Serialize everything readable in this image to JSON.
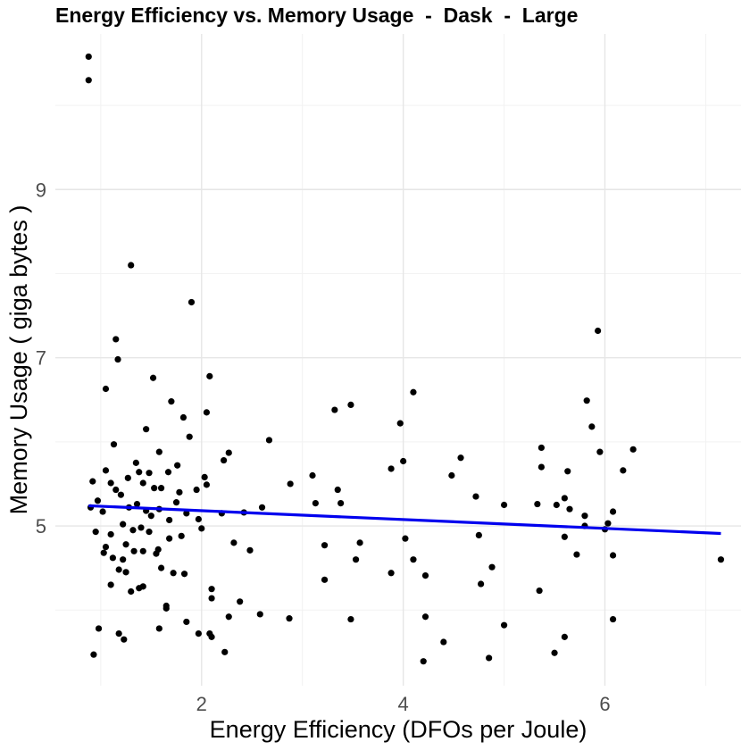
{
  "chart_data": {
    "type": "scatter",
    "title": "Energy Efficiency vs. Memory Usage  -  Dask  -  Large",
    "xlabel": "Energy Efficiency (DFOs per Joule)",
    "ylabel": "Memory Usage ( giga bytes )",
    "xlim": [
      0.55,
      7.35
    ],
    "ylim": [
      3.1,
      10.85
    ],
    "xticks": [
      2,
      4,
      6
    ],
    "yticks": [
      5,
      7,
      9
    ],
    "grid": true,
    "legend": "none",
    "point_color": "#000000",
    "line_color": "#0000ee",
    "trend_line": {
      "x": [
        0.88,
        7.15
      ],
      "y": [
        5.24,
        4.91
      ]
    },
    "points": [
      [
        0.88,
        10.58
      ],
      [
        0.88,
        10.3
      ],
      [
        1.3,
        8.1
      ],
      [
        1.9,
        7.66
      ],
      [
        5.93,
        7.32
      ],
      [
        1.15,
        7.22
      ],
      [
        1.17,
        6.98
      ],
      [
        1.52,
        6.76
      ],
      [
        2.08,
        6.78
      ],
      [
        1.05,
        6.63
      ],
      [
        1.7,
        6.48
      ],
      [
        1.45,
        6.15
      ],
      [
        1.82,
        6.29
      ],
      [
        2.05,
        6.35
      ],
      [
        3.32,
        6.38
      ],
      [
        3.48,
        6.44
      ],
      [
        4.1,
        6.59
      ],
      [
        3.97,
        6.22
      ],
      [
        5.82,
        6.49
      ],
      [
        5.87,
        6.18
      ],
      [
        1.13,
        5.97
      ],
      [
        1.88,
        6.06
      ],
      [
        2.27,
        5.87
      ],
      [
        2.67,
        6.02
      ],
      [
        5.37,
        5.93
      ],
      [
        5.95,
        5.88
      ],
      [
        6.28,
        5.91
      ],
      [
        3.88,
        5.68
      ],
      [
        4.0,
        5.77
      ],
      [
        4.57,
        5.81
      ],
      [
        5.37,
        5.7
      ],
      [
        5.63,
        5.65
      ],
      [
        6.18,
        5.66
      ],
      [
        3.1,
        5.6
      ],
      [
        4.48,
        5.6
      ],
      [
        1.05,
        5.66
      ],
      [
        1.35,
        5.75
      ],
      [
        1.76,
        5.72
      ],
      [
        1.58,
        5.88
      ],
      [
        2.22,
        5.78
      ],
      [
        1.38,
        5.64
      ],
      [
        1.48,
        5.63
      ],
      [
        1.67,
        5.64
      ],
      [
        2.03,
        5.58
      ],
      [
        1.27,
        5.57
      ],
      [
        0.92,
        5.53
      ],
      [
        1.1,
        5.51
      ],
      [
        1.42,
        5.51
      ],
      [
        1.53,
        5.45
      ],
      [
        1.6,
        5.45
      ],
      [
        1.78,
        5.4
      ],
      [
        1.95,
        5.43
      ],
      [
        2.05,
        5.49
      ],
      [
        0.97,
        5.3
      ],
      [
        1.02,
        5.17
      ],
      [
        1.15,
        5.43
      ],
      [
        1.2,
        5.37
      ],
      [
        1.28,
        5.22
      ],
      [
        1.36,
        5.26
      ],
      [
        1.45,
        5.18
      ],
      [
        1.5,
        5.12
      ],
      [
        1.58,
        5.2
      ],
      [
        1.68,
        5.07
      ],
      [
        1.75,
        5.28
      ],
      [
        1.85,
        5.15
      ],
      [
        1.97,
        5.08
      ],
      [
        2.2,
        5.15
      ],
      [
        2.42,
        5.16
      ],
      [
        2.6,
        5.22
      ],
      [
        2.88,
        5.5
      ],
      [
        3.13,
        5.27
      ],
      [
        3.35,
        5.43
      ],
      [
        3.38,
        5.27
      ],
      [
        4.72,
        5.35
      ],
      [
        5.0,
        5.25
      ],
      [
        5.33,
        5.26
      ],
      [
        5.52,
        5.25
      ],
      [
        5.6,
        5.33
      ],
      [
        5.65,
        5.2
      ],
      [
        5.8,
        5.12
      ],
      [
        6.08,
        5.17
      ],
      [
        0.9,
        5.22
      ],
      [
        0.95,
        4.93
      ],
      [
        1.05,
        4.75
      ],
      [
        1.1,
        4.9
      ],
      [
        1.22,
        5.02
      ],
      [
        1.32,
        4.95
      ],
      [
        1.4,
        4.98
      ],
      [
        1.48,
        4.93
      ],
      [
        1.57,
        4.72
      ],
      [
        1.68,
        4.85
      ],
      [
        1.8,
        4.88
      ],
      [
        2.0,
        4.97
      ],
      [
        2.32,
        4.8
      ],
      [
        2.48,
        4.71
      ],
      [
        3.22,
        4.77
      ],
      [
        3.57,
        4.8
      ],
      [
        3.53,
        4.6
      ],
      [
        4.02,
        4.85
      ],
      [
        4.75,
        4.89
      ],
      [
        5.6,
        4.87
      ],
      [
        5.8,
        5.0
      ],
      [
        6.0,
        4.96
      ],
      [
        6.03,
        5.03
      ],
      [
        6.08,
        4.65
      ],
      [
        1.03,
        4.68
      ],
      [
        1.12,
        4.62
      ],
      [
        1.18,
        4.48
      ],
      [
        1.22,
        4.6
      ],
      [
        1.25,
        4.78
      ],
      [
        1.33,
        4.7
      ],
      [
        1.42,
        4.7
      ],
      [
        1.55,
        4.67
      ],
      [
        1.6,
        4.5
      ],
      [
        1.72,
        4.44
      ],
      [
        1.83,
        4.43
      ],
      [
        3.22,
        4.36
      ],
      [
        3.88,
        4.44
      ],
      [
        4.1,
        4.6
      ],
      [
        4.22,
        4.41
      ],
      [
        4.77,
        4.31
      ],
      [
        4.88,
        4.51
      ],
      [
        5.35,
        4.23
      ],
      [
        5.72,
        4.66
      ],
      [
        1.1,
        4.3
      ],
      [
        1.25,
        4.45
      ],
      [
        1.3,
        4.22
      ],
      [
        1.38,
        4.26
      ],
      [
        1.42,
        4.28
      ],
      [
        2.1,
        4.25
      ],
      [
        2.1,
        4.14
      ],
      [
        1.65,
        4.05
      ],
      [
        1.65,
        4.02
      ],
      [
        2.38,
        4.1
      ],
      [
        1.85,
        3.86
      ],
      [
        2.27,
        3.92
      ],
      [
        2.58,
        3.95
      ],
      [
        2.87,
        3.9
      ],
      [
        3.48,
        3.89
      ],
      [
        4.22,
        3.92
      ],
      [
        5.0,
        3.82
      ],
      [
        6.08,
        3.89
      ],
      [
        1.58,
        3.78
      ],
      [
        0.98,
        3.78
      ],
      [
        1.18,
        3.72
      ],
      [
        1.23,
        3.65
      ],
      [
        1.97,
        3.72
      ],
      [
        2.08,
        3.72
      ],
      [
        2.1,
        3.68
      ],
      [
        5.6,
        3.68
      ],
      [
        4.4,
        3.62
      ],
      [
        2.23,
        3.5
      ],
      [
        0.93,
        3.47
      ],
      [
        5.5,
        3.49
      ],
      [
        4.85,
        3.43
      ],
      [
        4.2,
        3.39
      ],
      [
        7.15,
        4.6
      ]
    ]
  }
}
